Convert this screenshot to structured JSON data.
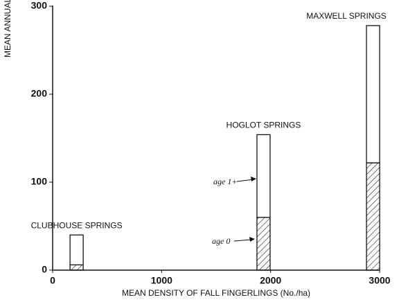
{
  "chart_data": {
    "type": "bar",
    "stacked": true,
    "y_label": "MEAN ANNUAL",
    "x_label": "MEAN DENSITY OF FALL FINGERLINGS (No./ha)",
    "x": [
      220,
      1935,
      2940
    ],
    "bar_labels": [
      "CLUBHOUSE SPRINGS",
      "HOGLOT SPRINGS",
      "MAXWELL SPRINGS"
    ],
    "series": [
      {
        "name": "age 0",
        "color": "#222222",
        "values": [
          6,
          60,
          122
        ]
      },
      {
        "name": "age 1+",
        "color": "#ffffff",
        "values": [
          34,
          94,
          156
        ]
      }
    ],
    "xlim": [
      0,
      3000
    ],
    "xticks": [
      0,
      1000,
      2000,
      3000
    ],
    "ylim": [
      0,
      300
    ],
    "yticks": [
      0,
      100,
      200,
      300
    ]
  }
}
